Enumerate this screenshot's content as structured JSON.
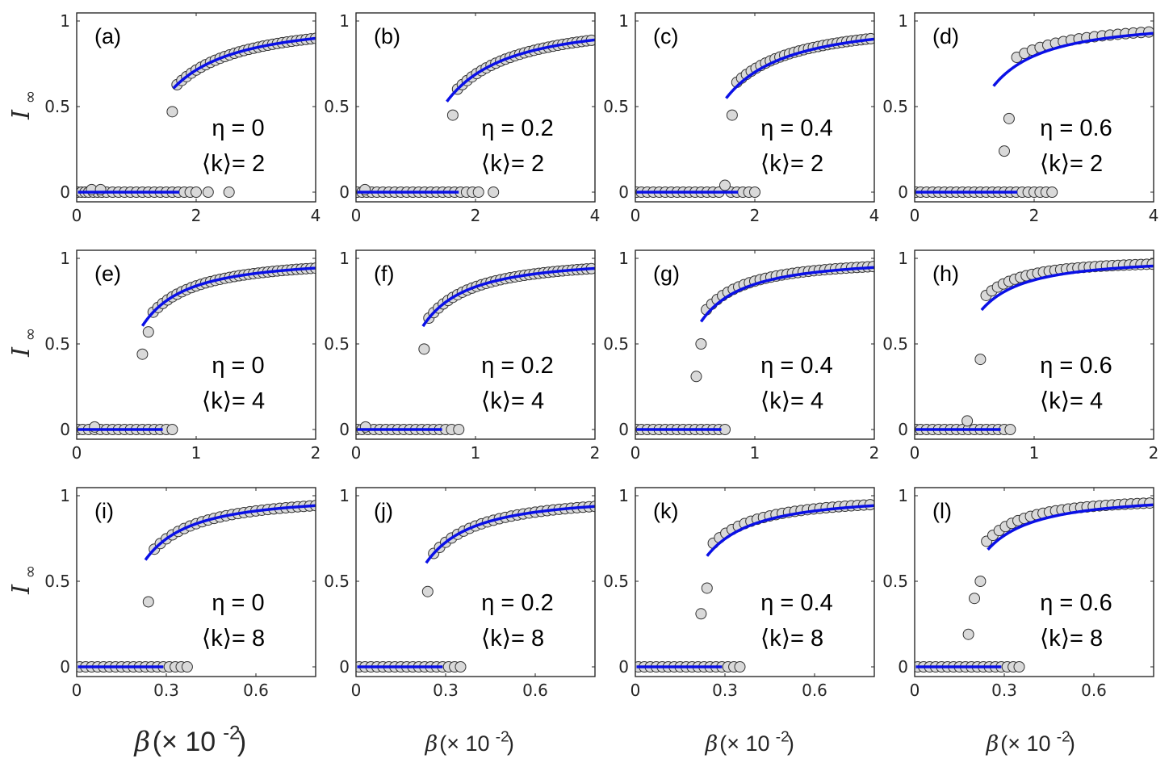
{
  "figure": {
    "ylabel": "I",
    "ylabel_subscript": "∞",
    "xlabel_symbol": "β",
    "xlabel_text": "(× 10",
    "xlabel_exponent": "-2",
    "xlabel_close": ")"
  },
  "chart_data": [
    {
      "type": "scatter",
      "label": "(a)",
      "eta": "η = 0",
      "k": "⟨k⟩= 2",
      "xlim": [
        0,
        4
      ],
      "ylim": [
        0,
        1
      ],
      "xticks": [
        0,
        2,
        4
      ],
      "xtick_labels": [
        "0",
        "2",
        "4"
      ],
      "yticks": [
        0,
        0.5,
        1
      ],
      "ytick_labels": [
        "0",
        "0.5",
        "1"
      ],
      "zero_points": [
        0.02,
        0.08,
        0.14,
        0.2,
        0.28,
        0.35,
        0.42,
        0.5,
        0.6,
        0.7,
        0.8,
        0.9,
        1.0,
        1.1,
        1.2,
        1.3,
        1.4,
        1.5,
        1.6,
        1.7,
        1.8,
        1.9,
        2.0,
        2.2,
        2.55
      ],
      "extra_points": [
        [
          0.25,
          0.015
        ],
        [
          0.4,
          0.015
        ]
      ],
      "sim_from": 1.6,
      "sim_step": 0.08,
      "sim_to": 4.0,
      "sim_first": 0.47,
      "sim_offset": 0.0,
      "theory_xc": 1.38,
      "theory_scale": 0.5,
      "theory_from": 1.62,
      "theory_zero_to": 1.72
    },
    {
      "type": "scatter",
      "label": "(b)",
      "eta": "η = 0.2",
      "k": "⟨k⟩= 2",
      "xlim": [
        0,
        4
      ],
      "ylim": [
        0,
        1
      ],
      "xticks": [
        0,
        2,
        4
      ],
      "xtick_labels": [
        "0",
        "2",
        "4"
      ],
      "yticks": [
        0,
        0.5,
        1
      ],
      "ytick_labels": [
        "0",
        "0.5",
        "1"
      ],
      "zero_points": [
        0.02,
        0.1,
        0.18,
        0.26,
        0.35,
        0.45,
        0.55,
        0.65,
        0.75,
        0.85,
        0.95,
        1.05,
        1.15,
        1.25,
        1.35,
        1.45,
        1.55,
        1.65,
        1.75,
        1.85,
        1.95,
        2.05,
        2.3
      ],
      "extra_points": [
        [
          0.15,
          0.015
        ]
      ],
      "sim_from": 1.62,
      "sim_step": 0.08,
      "sim_to": 4.0,
      "sim_first": 0.45,
      "sim_offset": 0.0,
      "theory_xc": 1.46,
      "theory_scale": 0.5,
      "theory_from": 1.52,
      "theory_zero_to": 1.72
    },
    {
      "type": "scatter",
      "label": "(c)",
      "eta": "η = 0.4",
      "k": "⟨k⟩= 2",
      "xlim": [
        0,
        4
      ],
      "ylim": [
        0,
        1
      ],
      "xticks": [
        0,
        2,
        4
      ],
      "xtick_labels": [
        "0",
        "2",
        "4"
      ],
      "yticks": [
        0,
        0.5,
        1
      ],
      "ytick_labels": [
        "0",
        "0.5",
        "1"
      ],
      "zero_points": [
        0.02,
        0.1,
        0.2,
        0.3,
        0.4,
        0.5,
        0.6,
        0.7,
        0.8,
        0.9,
        1.0,
        1.1,
        1.2,
        1.3,
        1.4,
        1.6,
        1.7,
        1.8,
        1.9,
        2.0
      ],
      "extra_points": [
        [
          1.5,
          0.04
        ]
      ],
      "sim_from": 1.62,
      "sim_step": 0.08,
      "sim_to": 4.0,
      "sim_first": 0.45,
      "sim_offset": 0.025,
      "theory_xc": 1.42,
      "theory_scale": 0.5,
      "theory_from": 1.52,
      "theory_zero_to": 1.72
    },
    {
      "type": "scatter",
      "label": "(d)",
      "eta": "η = 0.6",
      "k": "⟨k⟩= 2",
      "xlim": [
        0,
        4
      ],
      "ylim": [
        0,
        1
      ],
      "xticks": [
        0,
        2,
        4
      ],
      "xtick_labels": [
        "0",
        "2",
        "4"
      ],
      "yticks": [
        0,
        0.5,
        1
      ],
      "ytick_labels": [
        "0",
        "0.5",
        "1"
      ],
      "zero_points": [
        0.02,
        0.1,
        0.2,
        0.3,
        0.4,
        0.5,
        0.6,
        0.7,
        0.8,
        0.9,
        1.0,
        1.1,
        1.2,
        1.3,
        1.4,
        1.5,
        1.6,
        1.7,
        1.8,
        1.9,
        2.0,
        2.1,
        2.2,
        2.3
      ],
      "extra_points": [
        [
          1.5,
          0.24
        ]
      ],
      "sim_from": 1.58,
      "sim_step": 0.13,
      "sim_to": 4.0,
      "sim_first": 0.43,
      "sim_offset": 0.05,
      "theory_xc": 1.1,
      "theory_scale": 0.5,
      "theory_from": 1.32,
      "theory_zero_to": 1.72
    },
    {
      "type": "scatter",
      "label": "(e)",
      "eta": "η = 0",
      "k": "⟨k⟩= 4",
      "xlim": [
        0,
        2
      ],
      "ylim": [
        0,
        1
      ],
      "xticks": [
        0,
        1,
        2
      ],
      "xtick_labels": [
        "0",
        "1",
        "2"
      ],
      "yticks": [
        0,
        0.5,
        1
      ],
      "ytick_labels": [
        "0",
        "0.5",
        "1"
      ],
      "zero_points": [
        0.01,
        0.05,
        0.1,
        0.15,
        0.2,
        0.25,
        0.3,
        0.35,
        0.4,
        0.45,
        0.5,
        0.55,
        0.6,
        0.65,
        0.7,
        0.75,
        0.8
      ],
      "extra_points": [
        [
          0.55,
          0.44
        ],
        [
          0.15,
          0.015
        ]
      ],
      "sim_from": 0.6,
      "sim_step": 0.04,
      "sim_to": 2.0,
      "sim_first": 0.57,
      "sim_offset": 0.0,
      "theory_xc": 0.47,
      "theory_scale": 0.5,
      "theory_from": 0.55,
      "theory_zero_to": 0.72
    },
    {
      "type": "scatter",
      "label": "(f)",
      "eta": "η = 0.2",
      "k": "⟨k⟩= 4",
      "xlim": [
        0,
        2
      ],
      "ylim": [
        0,
        1
      ],
      "xticks": [
        0,
        1,
        2
      ],
      "xtick_labels": [
        "0",
        "1",
        "2"
      ],
      "yticks": [
        0,
        0.5,
        1
      ],
      "ytick_labels": [
        "0",
        "0.5",
        "1"
      ],
      "zero_points": [
        0.01,
        0.05,
        0.1,
        0.15,
        0.2,
        0.25,
        0.3,
        0.35,
        0.4,
        0.45,
        0.5,
        0.55,
        0.6,
        0.65,
        0.7,
        0.75,
        0.8,
        0.86
      ],
      "extra_points": [
        [
          0.08,
          0.015
        ]
      ],
      "sim_from": 0.57,
      "sim_step": 0.04,
      "sim_to": 2.0,
      "sim_first": 0.47,
      "sim_offset": 0.0,
      "theory_xc": 0.48,
      "theory_scale": 0.5,
      "theory_from": 0.56,
      "theory_zero_to": 0.72
    },
    {
      "type": "scatter",
      "label": "(g)",
      "eta": "η = 0.4",
      "k": "⟨k⟩= 4",
      "xlim": [
        0,
        2
      ],
      "ylim": [
        0,
        1
      ],
      "xticks": [
        0,
        1,
        2
      ],
      "xtick_labels": [
        "0",
        "1",
        "2"
      ],
      "yticks": [
        0,
        0.5,
        1
      ],
      "ytick_labels": [
        "0",
        "0.5",
        "1"
      ],
      "zero_points": [
        0.01,
        0.05,
        0.1,
        0.15,
        0.2,
        0.25,
        0.3,
        0.35,
        0.4,
        0.45,
        0.5,
        0.55,
        0.6,
        0.65,
        0.7,
        0.75
      ],
      "extra_points": [
        [
          0.51,
          0.31
        ]
      ],
      "sim_from": 0.55,
      "sim_step": 0.045,
      "sim_to": 2.0,
      "sim_first": 0.5,
      "sim_offset": 0.03,
      "theory_xc": 0.45,
      "theory_scale": 0.5,
      "theory_from": 0.55,
      "theory_zero_to": 0.72
    },
    {
      "type": "scatter",
      "label": "(h)",
      "eta": "η = 0.6",
      "k": "⟨k⟩= 4",
      "xlim": [
        0,
        2
      ],
      "ylim": [
        0,
        1
      ],
      "xticks": [
        0,
        1,
        2
      ],
      "xtick_labels": [
        "0",
        "1",
        "2"
      ],
      "yticks": [
        0,
        0.5,
        1
      ],
      "ytick_labels": [
        "0",
        "0.5",
        "1"
      ],
      "zero_points": [
        0.01,
        0.05,
        0.1,
        0.15,
        0.2,
        0.25,
        0.3,
        0.35,
        0.4,
        0.45,
        0.5,
        0.55,
        0.6,
        0.65,
        0.7,
        0.75,
        0.8
      ],
      "extra_points": [
        [
          0.44,
          0.05
        ]
      ],
      "sim_from": 0.55,
      "sim_step": 0.048,
      "sim_to": 2.0,
      "sim_first": 0.41,
      "sim_offset": 0.06,
      "theory_xc": 0.4,
      "theory_scale": 0.5,
      "theory_from": 0.56,
      "theory_zero_to": 0.72
    },
    {
      "type": "scatter",
      "label": "(i)",
      "eta": "η = 0",
      "k": "⟨k⟩= 8",
      "xlim": [
        0,
        0.8
      ],
      "ylim": [
        0,
        1
      ],
      "xticks": [
        0,
        0.3,
        0.6
      ],
      "xtick_labels": [
        "0",
        "0.3",
        "0.6"
      ],
      "yticks": [
        0,
        0.5,
        1
      ],
      "ytick_labels": [
        "0",
        "0.5",
        "1"
      ],
      "zero_points": [
        0.01,
        0.03,
        0.05,
        0.07,
        0.09,
        0.11,
        0.13,
        0.15,
        0.17,
        0.19,
        0.21,
        0.23,
        0.25,
        0.27,
        0.29,
        0.31,
        0.33,
        0.35,
        0.37
      ],
      "extra_points": [],
      "sim_from": 0.24,
      "sim_step": 0.02,
      "sim_to": 0.8,
      "sim_first": 0.38,
      "sim_offset": 0.0,
      "theory_xc": 0.19,
      "theory_scale": 0.5,
      "theory_from": 0.23,
      "theory_zero_to": 0.29
    },
    {
      "type": "scatter",
      "label": "(j)",
      "eta": "η = 0.2",
      "k": "⟨k⟩= 8",
      "xlim": [
        0,
        0.8
      ],
      "ylim": [
        0,
        1
      ],
      "xticks": [
        0,
        0.3,
        0.6
      ],
      "xtick_labels": [
        "0",
        "0.3",
        "0.6"
      ],
      "yticks": [
        0,
        0.5,
        1
      ],
      "ytick_labels": [
        "0",
        "0.5",
        "1"
      ],
      "zero_points": [
        0.01,
        0.03,
        0.05,
        0.07,
        0.09,
        0.11,
        0.13,
        0.15,
        0.17,
        0.19,
        0.21,
        0.23,
        0.25,
        0.27,
        0.29,
        0.31,
        0.33,
        0.35
      ],
      "extra_points": [],
      "sim_from": 0.24,
      "sim_step": 0.02,
      "sim_to": 0.8,
      "sim_first": 0.44,
      "sim_offset": 0.0,
      "theory_xc": 0.2,
      "theory_scale": 0.5,
      "theory_from": 0.235,
      "theory_zero_to": 0.29
    },
    {
      "type": "scatter",
      "label": "(k)",
      "eta": "η = 0.4",
      "k": "⟨k⟩= 8",
      "xlim": [
        0,
        0.8
      ],
      "ylim": [
        0,
        1
      ],
      "xticks": [
        0,
        0.3,
        0.6
      ],
      "xtick_labels": [
        "0",
        "0.3",
        "0.6"
      ],
      "yticks": [
        0,
        0.5,
        1
      ],
      "ytick_labels": [
        "0",
        "0.5",
        "1"
      ],
      "zero_points": [
        0.01,
        0.03,
        0.05,
        0.07,
        0.09,
        0.11,
        0.13,
        0.15,
        0.17,
        0.19,
        0.21,
        0.23,
        0.25,
        0.27,
        0.29,
        0.31,
        0.33,
        0.35
      ],
      "extra_points": [
        [
          0.22,
          0.31
        ]
      ],
      "sim_from": 0.24,
      "sim_step": 0.021,
      "sim_to": 0.8,
      "sim_first": 0.46,
      "sim_offset": 0.035,
      "theory_xc": 0.19,
      "theory_scale": 0.5,
      "theory_from": 0.24,
      "theory_zero_to": 0.29
    },
    {
      "type": "scatter",
      "label": "(l)",
      "eta": "η = 0.6",
      "k": "⟨k⟩= 8",
      "xlim": [
        0,
        0.8
      ],
      "ylim": [
        0,
        1
      ],
      "xticks": [
        0,
        0.3,
        0.6
      ],
      "xtick_labels": [
        "0",
        "0.3",
        "0.6"
      ],
      "yticks": [
        0,
        0.5,
        1
      ],
      "ytick_labels": [
        "0",
        "0.5",
        "1"
      ],
      "zero_points": [
        0.01,
        0.03,
        0.05,
        0.07,
        0.09,
        0.11,
        0.13,
        0.15,
        0.17,
        0.19,
        0.21,
        0.23,
        0.25,
        0.27,
        0.29,
        0.31,
        0.33,
        0.35
      ],
      "extra_points": [
        [
          0.18,
          0.19
        ],
        [
          0.2,
          0.4
        ]
      ],
      "sim_from": 0.22,
      "sim_step": 0.021,
      "sim_to": 0.8,
      "sim_first": 0.5,
      "sim_offset": 0.06,
      "theory_xc": 0.18,
      "theory_scale": 0.5,
      "theory_from": 0.245,
      "theory_zero_to": 0.29
    }
  ]
}
